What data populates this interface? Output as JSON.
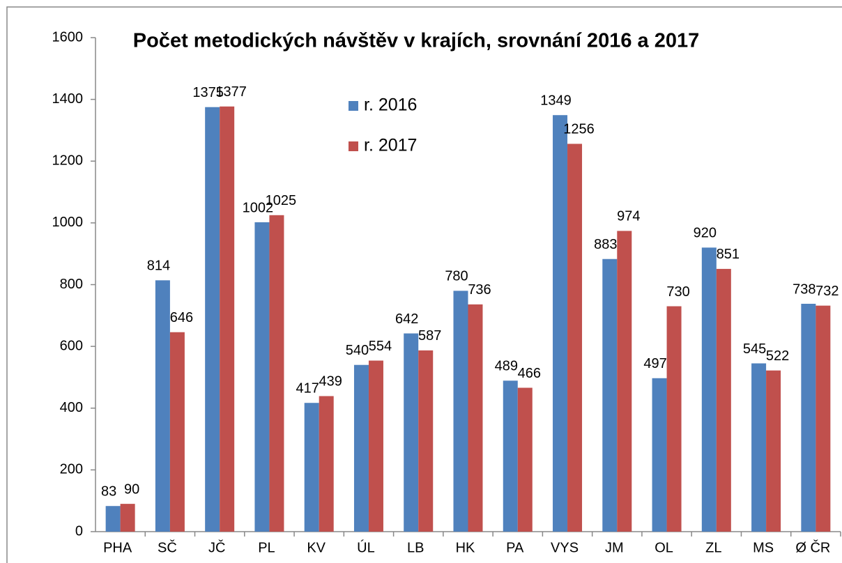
{
  "chart_data": {
    "type": "bar",
    "title": "Počet metodických návštěv v krajích, srovnání 2016 a 2017",
    "categories": [
      "PHA",
      "SČ",
      "JČ",
      "PL",
      "KV",
      "ÚL",
      "LB",
      "HK",
      "PA",
      "VYS",
      "JM",
      "OL",
      "ZL",
      "MS",
      "Ø ČR"
    ],
    "series": [
      {
        "name": "r. 2016",
        "color": "#4f81bd",
        "values": [
          83,
          814,
          1375,
          1002,
          417,
          540,
          642,
          780,
          489,
          1349,
          883,
          497,
          920,
          545,
          738
        ]
      },
      {
        "name": "r. 2017",
        "color": "#c0504d",
        "values": [
          90,
          646,
          1377,
          1025,
          439,
          554,
          587,
          736,
          466,
          1256,
          974,
          730,
          851,
          522,
          732
        ]
      }
    ],
    "ylim": [
      0,
      1600
    ],
    "yticks": [
      0,
      200,
      400,
      600,
      800,
      1000,
      1200,
      1400,
      1600
    ],
    "grid": false
  }
}
